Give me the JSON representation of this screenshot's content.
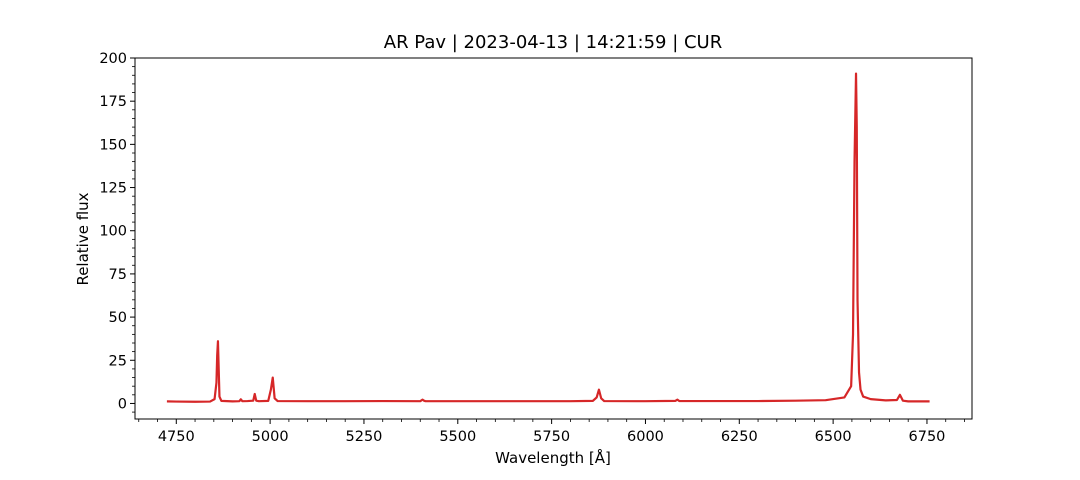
{
  "chart_data": {
    "type": "line",
    "title": "AR Pav | 2023-04-13 | 14:21:59 | CUR",
    "xlabel": "Wavelength [Å]",
    "ylabel": "Relative flux",
    "xlim": [
      4640,
      6870
    ],
    "ylim": [
      -9,
      200
    ],
    "xticks": [
      4750,
      5000,
      5250,
      5500,
      5750,
      6000,
      6250,
      6500,
      6750
    ],
    "yticks": [
      0,
      25,
      50,
      75,
      100,
      125,
      150,
      175,
      200
    ],
    "grid": false,
    "legend": "none",
    "series": [
      {
        "color": "#d62728",
        "x": [
          4725,
          4750,
          4800,
          4840,
          4852,
          4857,
          4859,
          4861,
          4863,
          4865,
          4870,
          4900,
          4918,
          4922,
          4926,
          4940,
          4955,
          4959,
          4963,
          4970,
          4995,
          5002,
          5007,
          5012,
          5020,
          5100,
          5200,
          5300,
          5400,
          5406,
          5410,
          5414,
          5500,
          5600,
          5700,
          5800,
          5860,
          5870,
          5876,
          5882,
          5890,
          6000,
          6080,
          6085,
          6090,
          6200,
          6300,
          6400,
          6480,
          6530,
          6548,
          6553,
          6557,
          6561,
          6563,
          6565,
          6569,
          6573,
          6580,
          6600,
          6640,
          6670,
          6678,
          6686,
          6700,
          6757
        ],
        "y": [
          1.2,
          1.1,
          1.0,
          1.1,
          2.5,
          12,
          28,
          36,
          20,
          4,
          1.5,
          1.2,
          1.3,
          2.4,
          1.3,
          1.4,
          1.6,
          5.5,
          1.6,
          1.3,
          1.5,
          8,
          15,
          3,
          1.4,
          1.3,
          1.3,
          1.4,
          1.3,
          2.2,
          1.6,
          1.3,
          1.3,
          1.3,
          1.3,
          1.3,
          1.5,
          3.5,
          8,
          3,
          1.4,
          1.3,
          1.5,
          2.2,
          1.4,
          1.4,
          1.4,
          1.6,
          1.9,
          3.5,
          10,
          40,
          140,
          191,
          160,
          60,
          18,
          8,
          4,
          2.5,
          1.8,
          2.0,
          5,
          1.6,
          1.2,
          1.2
        ]
      }
    ]
  }
}
